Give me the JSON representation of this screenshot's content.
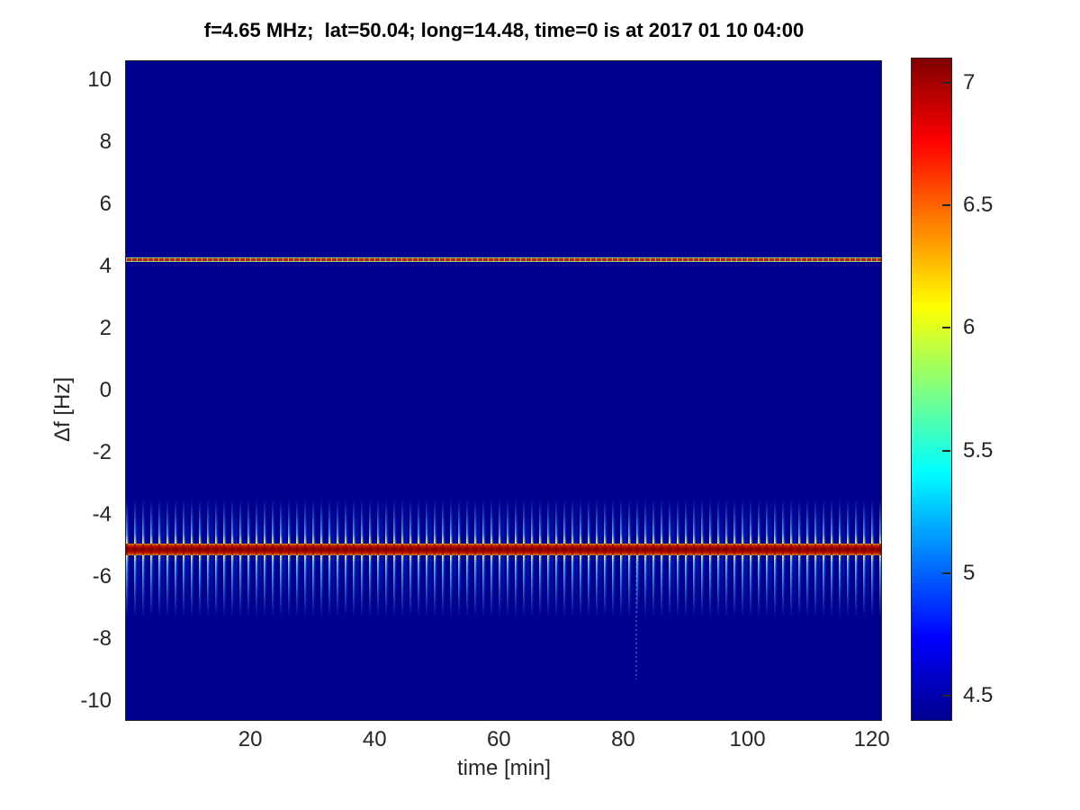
{
  "title": "f=4.65 MHz;  lat=50.04; long=14.48, time=0 is at 2017 01 10 04:00",
  "x_axis": {
    "label": "time [min]",
    "ticks": [
      20,
      40,
      60,
      80,
      100,
      120
    ],
    "range": [
      0,
      121.5
    ]
  },
  "y_axis": {
    "label": "Δf [Hz]",
    "ticks": [
      10,
      8,
      6,
      4,
      2,
      0,
      -2,
      -4,
      -6,
      -8,
      -10
    ],
    "range": [
      -10.6,
      10.6
    ]
  },
  "colorbar": {
    "ticks": [
      7,
      6.5,
      6,
      5.5,
      5,
      4.5
    ],
    "range": [
      4.4,
      7.1
    ],
    "colormap": "jet"
  },
  "colors": {
    "background": "#ffffff",
    "plot_background": "#00008f",
    "axis": "#262626",
    "strong_line_core": "#870000",
    "fringe_cyan": "#00aaff",
    "fringe_yellow": "#ffaa00",
    "jet_stops": [
      "#00008f",
      "#0000ff",
      "#00ffff",
      "#ffff00",
      "#ff0000",
      "#800000"
    ]
  },
  "chart_data": {
    "type": "heatmap",
    "title": "f=4.65 MHz;  lat=50.04; long=14.48, time=0 is at 2017 01 10 04:00",
    "xlabel": "time [min]",
    "ylabel": "Δf [Hz]",
    "xlim": [
      0,
      121.5
    ],
    "ylim": [
      -10.6,
      10.6
    ],
    "clim": [
      4.4,
      7.1
    ],
    "colormap": "jet",
    "grid": false,
    "legend": false,
    "background_value": 4.45,
    "features": [
      {
        "name": "weak narrow spectral line",
        "center_freq_hz": 4.2,
        "width_hz": 0.15,
        "time_span_min": [
          0,
          121.5
        ],
        "peak_value": 6.6,
        "appearance": "thin dashed red line with yellow-green edges and light-blue breaks"
      },
      {
        "name": "strong spectral line with periodic sidebands",
        "center_freq_hz": -5.1,
        "core_width_hz": 0.38,
        "sideband_extent_hz": [
          -7.3,
          -3.5
        ],
        "modulation_period_min": 1.3,
        "time_span_min": [
          0,
          121.5
        ],
        "peak_value": 7.1,
        "appearance": "solid dark-red core with vertical cyan/blue fringes, yellow-orange fringe tips near core"
      }
    ],
    "artifact": {
      "time_min": 82,
      "freq_span_hz": [
        -9.3,
        -5.5
      ],
      "appearance": "faint dotted vertical blue line"
    }
  }
}
